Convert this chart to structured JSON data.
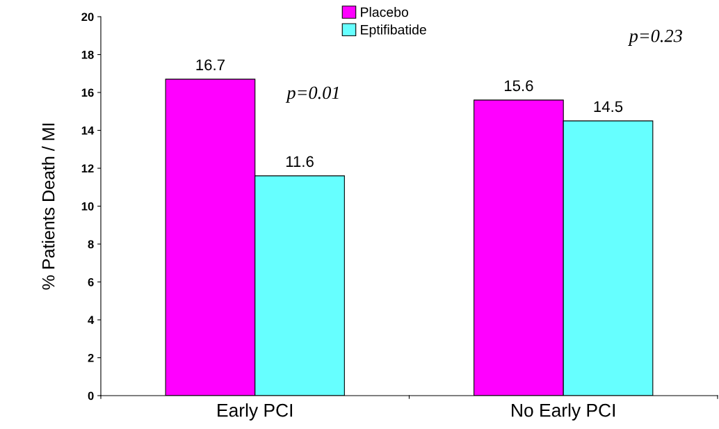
{
  "chart_data": {
    "type": "bar",
    "ylabel": "% Patients Death / MI",
    "categories": [
      "Early PCI",
      "No Early PCI"
    ],
    "series": [
      {
        "name": "Placebo",
        "color": "#ff00ff",
        "values": [
          16.7,
          15.6
        ]
      },
      {
        "name": "Eptifibatide",
        "color": "#66ffff",
        "values": [
          11.6,
          14.5
        ]
      }
    ],
    "data_labels": true,
    "ylim": [
      0,
      20
    ],
    "yticks": [
      0,
      2,
      4,
      6,
      8,
      10,
      12,
      14,
      16,
      18,
      20
    ],
    "grid": false,
    "legend": "top",
    "annotations": [
      "p=0.01",
      "p=0.23"
    ]
  }
}
